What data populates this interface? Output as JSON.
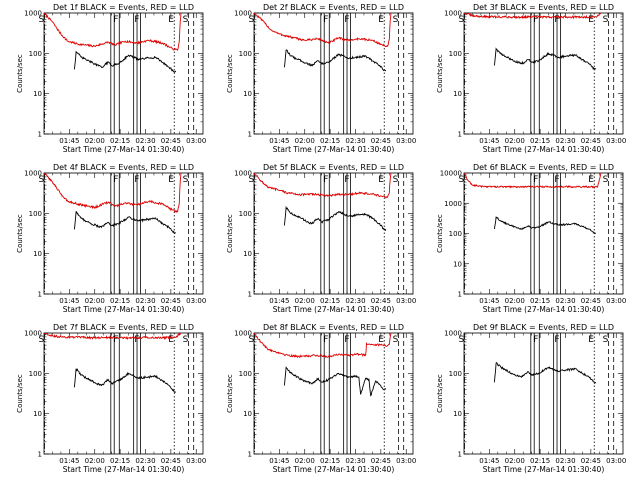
{
  "figure": {
    "x_ticks": [
      "01:45",
      "02:00",
      "02:15",
      "02:30",
      "02:45",
      "03:00"
    ],
    "y_ticks": [
      "1",
      "10",
      "100",
      "1000"
    ],
    "xlabel": "Start Time (27-Mar-14 01:30:40)",
    "ylabel": "Counts/sec",
    "colors": {
      "events": "#000000",
      "lld": "#dd0000"
    }
  },
  "chart_data": [
    {
      "type": "line",
      "title": "Det 1f BLACK = Events, RED = LLD",
      "xlabel": "Start Time (27-Mar-14 01:30:40)",
      "ylabel": "Counts/sec",
      "x_range_minutes_after_start": [
        0,
        94
      ],
      "ylim": [
        1,
        1000
      ],
      "y_scale": "log",
      "series": [
        {
          "color": "#dd0000",
          "x": [
            0,
            5,
            10,
            14,
            20,
            30,
            38,
            42,
            48,
            55,
            62,
            70,
            76,
            79,
            80,
            80.5,
            81
          ],
          "values": [
            1000,
            600,
            300,
            200,
            170,
            150,
            190,
            160,
            200,
            180,
            210,
            180,
            130,
            120,
            200,
            600,
            1000
          ]
        },
        {
          "color": "#000000",
          "x": [
            18,
            19,
            22,
            28,
            34,
            38,
            40,
            44,
            50,
            56,
            60,
            66,
            70,
            74,
            77,
            78
          ],
          "values": [
            40,
            110,
            80,
            60,
            45,
            60,
            50,
            55,
            90,
            70,
            75,
            80,
            60,
            45,
            35,
            35
          ]
        }
      ],
      "markers": [
        {
          "label": "S",
          "x": 0.3
        },
        {
          "label": "F",
          "x": 44.5
        },
        {
          "label": "F",
          "x": 57
        },
        {
          "label": "E",
          "x": 77
        },
        {
          "label": "S",
          "x": 85.5
        }
      ]
    },
    {
      "type": "line",
      "title": "Det 2f BLACK = Events, RED = LLD",
      "xlabel": "Start Time (27-Mar-14 01:30:40)",
      "ylabel": "Counts/sec",
      "x_range_minutes_after_start": [
        0,
        94
      ],
      "ylim": [
        1,
        1000
      ],
      "y_scale": "log",
      "series": [
        {
          "color": "#dd0000",
          "x": [
            0,
            5,
            10,
            15,
            22,
            30,
            38,
            44,
            50,
            56,
            62,
            70,
            76,
            79,
            80,
            80.5,
            81
          ],
          "values": [
            1000,
            650,
            380,
            300,
            250,
            210,
            230,
            180,
            240,
            210,
            230,
            210,
            160,
            150,
            220,
            650,
            1000
          ]
        },
        {
          "color": "#000000",
          "x": [
            18,
            19,
            22,
            28,
            34,
            38,
            40,
            44,
            50,
            56,
            60,
            66,
            70,
            74,
            77,
            78
          ],
          "values": [
            45,
            120,
            85,
            65,
            50,
            65,
            55,
            60,
            95,
            75,
            80,
            85,
            65,
            50,
            38,
            38
          ]
        }
      ],
      "markers": [
        {
          "label": "S",
          "x": 0.3
        },
        {
          "label": "F",
          "x": 44.5
        },
        {
          "label": "F",
          "x": 57
        },
        {
          "label": "E",
          "x": 77
        },
        {
          "label": "S",
          "x": 85.5
        }
      ]
    },
    {
      "type": "line",
      "title": "Det 3f BLACK = Events, RED = LLD",
      "xlabel": "Start Time (27-Mar-14 01:30:40)",
      "ylabel": "Counts/sec",
      "x_range_minutes_after_start": [
        0,
        94
      ],
      "ylim": [
        1,
        1000
      ],
      "y_scale": "log",
      "series": [
        {
          "color": "#dd0000",
          "x": [
            0,
            2,
            5,
            10,
            20,
            30,
            40,
            50,
            60,
            70,
            78,
            80,
            81
          ],
          "values": [
            1000,
            950,
            850,
            820,
            800,
            790,
            800,
            790,
            800,
            790,
            800,
            950,
            1000
          ]
        },
        {
          "color": "#000000",
          "x": [
            18,
            19,
            22,
            28,
            34,
            38,
            40,
            44,
            50,
            56,
            60,
            66,
            70,
            74,
            77,
            78
          ],
          "values": [
            50,
            130,
            95,
            70,
            55,
            70,
            60,
            65,
            100,
            80,
            85,
            90,
            70,
            55,
            40,
            40
          ]
        }
      ],
      "markers": [
        {
          "label": "S",
          "x": 0.3
        },
        {
          "label": "F",
          "x": 44.5
        },
        {
          "label": "F",
          "x": 57
        },
        {
          "label": "E",
          "x": 77
        },
        {
          "label": "S",
          "x": 85.5
        }
      ]
    },
    {
      "type": "line",
      "title": "Det 4f BLACK = Events, RED = LLD",
      "xlabel": "Start Time (27-Mar-14 01:30:40)",
      "ylabel": "Counts/sec",
      "x_range_minutes_after_start": [
        0,
        94
      ],
      "ylim": [
        1,
        1000
      ],
      "y_scale": "log",
      "series": [
        {
          "color": "#dd0000",
          "x": [
            0,
            5,
            10,
            14,
            20,
            30,
            38,
            42,
            48,
            55,
            62,
            70,
            76,
            79,
            80,
            80.5,
            81
          ],
          "values": [
            1000,
            600,
            300,
            200,
            170,
            140,
            190,
            150,
            180,
            160,
            200,
            170,
            120,
            110,
            180,
            600,
            1000
          ]
        },
        {
          "color": "#000000",
          "x": [
            18,
            19,
            22,
            28,
            34,
            38,
            40,
            44,
            50,
            56,
            60,
            66,
            70,
            74,
            77,
            78
          ],
          "values": [
            40,
            110,
            75,
            55,
            45,
            60,
            50,
            55,
            80,
            65,
            70,
            75,
            55,
            45,
            33,
            33
          ]
        }
      ],
      "markers": [
        {
          "label": "S",
          "x": 0.3
        },
        {
          "label": "F",
          "x": 44.5
        },
        {
          "label": "F",
          "x": 57
        },
        {
          "label": "E",
          "x": 77
        },
        {
          "label": "S",
          "x": 85.5
        }
      ]
    },
    {
      "type": "line",
      "title": "Det 5f BLACK = Events, RED = LLD",
      "xlabel": "Start Time (27-Mar-14 01:30:40)",
      "ylabel": "Counts/sec",
      "x_range_minutes_after_start": [
        0,
        94
      ],
      "ylim": [
        1,
        1000
      ],
      "y_scale": "log",
      "series": [
        {
          "color": "#dd0000",
          "x": [
            0,
            4,
            8,
            14,
            20,
            28,
            36,
            44,
            50,
            56,
            62,
            70,
            76,
            79,
            80,
            80.5,
            81
          ],
          "values": [
            1000,
            650,
            450,
            380,
            320,
            290,
            300,
            270,
            300,
            290,
            320,
            300,
            260,
            250,
            320,
            700,
            1000
          ]
        },
        {
          "color": "#000000",
          "x": [
            18,
            19,
            22,
            28,
            34,
            38,
            40,
            44,
            50,
            56,
            60,
            66,
            70,
            74,
            77,
            78
          ],
          "values": [
            50,
            140,
            100,
            75,
            55,
            75,
            60,
            70,
            110,
            85,
            90,
            95,
            75,
            55,
            40,
            40
          ]
        }
      ],
      "markers": [
        {
          "label": "S",
          "x": 0.3
        },
        {
          "label": "F",
          "x": 44.5
        },
        {
          "label": "F",
          "x": 57
        },
        {
          "label": "E",
          "x": 77
        },
        {
          "label": "S",
          "x": 85.5
        }
      ]
    },
    {
      "type": "line",
      "title": "Det 6f BLACK = Events, RED = LLD",
      "xlabel": "Start Time (27-Mar-14 01:30:40)",
      "ylabel": "Counts/sec",
      "x_range_minutes_after_start": [
        0,
        94
      ],
      "ylim": [
        1,
        10000
      ],
      "y_scale": "log",
      "series": [
        {
          "color": "#dd0000",
          "x": [
            0,
            2,
            5,
            10,
            20,
            30,
            40,
            50,
            60,
            70,
            79,
            80,
            81
          ],
          "values": [
            10000,
            6000,
            4000,
            3600,
            3500,
            3500,
            3500,
            3500,
            3500,
            3500,
            3500,
            6000,
            10000
          ]
        },
        {
          "color": "#000000",
          "x": [
            18,
            19,
            22,
            28,
            34,
            38,
            40,
            44,
            50,
            56,
            60,
            66,
            70,
            74,
            77,
            78
          ],
          "values": [
            140,
            350,
            250,
            180,
            140,
            180,
            150,
            160,
            240,
            190,
            200,
            210,
            170,
            140,
            100,
            100
          ]
        }
      ],
      "markers": [
        {
          "label": "S",
          "x": 0.3
        },
        {
          "label": "F",
          "x": 44.5
        },
        {
          "label": "F",
          "x": 57
        },
        {
          "label": "E",
          "x": 77
        },
        {
          "label": "S",
          "x": 85.5
        }
      ]
    },
    {
      "type": "line",
      "title": "Det 7f BLACK = Events, RED = LLD",
      "xlabel": "Start Time (27-Mar-14 01:30:40)",
      "ylabel": "Counts/sec",
      "x_range_minutes_after_start": [
        0,
        94
      ],
      "ylim": [
        1,
        1000
      ],
      "y_scale": "log",
      "series": [
        {
          "color": "#dd0000",
          "x": [
            0,
            2,
            5,
            10,
            20,
            30,
            40,
            50,
            60,
            70,
            78,
            80,
            81
          ],
          "values": [
            1000,
            950,
            850,
            800,
            780,
            760,
            780,
            760,
            780,
            760,
            780,
            950,
            1000
          ]
        },
        {
          "color": "#000000",
          "x": [
            18,
            19,
            22,
            28,
            34,
            38,
            40,
            44,
            50,
            56,
            60,
            66,
            70,
            74,
            77,
            78
          ],
          "values": [
            45,
            130,
            90,
            65,
            50,
            70,
            55,
            65,
            100,
            75,
            80,
            85,
            65,
            50,
            35,
            35
          ]
        }
      ],
      "markers": [
        {
          "label": "S",
          "x": 0.3
        },
        {
          "label": "F",
          "x": 44.5
        },
        {
          "label": "F",
          "x": 57
        },
        {
          "label": "E",
          "x": 77
        },
        {
          "label": "S",
          "x": 85.5
        }
      ]
    },
    {
      "type": "line",
      "title": "Det 8f BLACK = Events, RED = LLD",
      "xlabel": "Start Time (27-Mar-14 01:30:40)",
      "ylabel": "Counts/sec",
      "x_range_minutes_after_start": [
        0,
        94
      ],
      "ylim": [
        1,
        1000
      ],
      "y_scale": "log",
      "series": [
        {
          "color": "#dd0000",
          "x": [
            0,
            4,
            8,
            14,
            20,
            28,
            36,
            44,
            50,
            56,
            62,
            66,
            66.5,
            70,
            76,
            79,
            80,
            80.5,
            81
          ],
          "values": [
            1000,
            600,
            400,
            330,
            280,
            260,
            280,
            260,
            300,
            280,
            300,
            280,
            550,
            520,
            500,
            490,
            520,
            800,
            1000
          ]
        },
        {
          "color": "#000000",
          "x": [
            18,
            19,
            22,
            28,
            34,
            38,
            40,
            44,
            50,
            56,
            60,
            62,
            63,
            66,
            68,
            69,
            72,
            77,
            78
          ],
          "values": [
            50,
            140,
            100,
            70,
            55,
            75,
            60,
            70,
            100,
            80,
            85,
            80,
            30,
            75,
            70,
            28,
            65,
            40,
            40
          ]
        }
      ],
      "markers": [
        {
          "label": "S",
          "x": 0.3
        },
        {
          "label": "F",
          "x": 44.5
        },
        {
          "label": "F",
          "x": 57
        },
        {
          "label": "E",
          "x": 77
        },
        {
          "label": "S",
          "x": 85.5
        }
      ]
    },
    {
      "type": "line",
      "title": "Det 9f BLACK = Events, RED = LLD",
      "xlabel": "Start Time (27-Mar-14 01:30:40)",
      "ylabel": "Counts/sec",
      "x_range_minutes_after_start": [
        0,
        94
      ],
      "ylim": [
        1,
        1000
      ],
      "y_scale": "log",
      "series": [
        {
          "color": "#000000",
          "x": [
            18,
            19,
            22,
            28,
            34,
            38,
            40,
            44,
            50,
            56,
            60,
            66,
            70,
            74,
            77,
            78
          ],
          "values": [
            60,
            180,
            140,
            100,
            80,
            110,
            90,
            100,
            140,
            110,
            120,
            130,
            100,
            80,
            60,
            60
          ]
        }
      ],
      "markers": [
        {
          "label": "S",
          "x": 0.3
        },
        {
          "label": "F",
          "x": 44.5
        },
        {
          "label": "F",
          "x": 57
        },
        {
          "label": "E",
          "x": 77
        },
        {
          "label": "S",
          "x": 85.5
        }
      ]
    }
  ]
}
